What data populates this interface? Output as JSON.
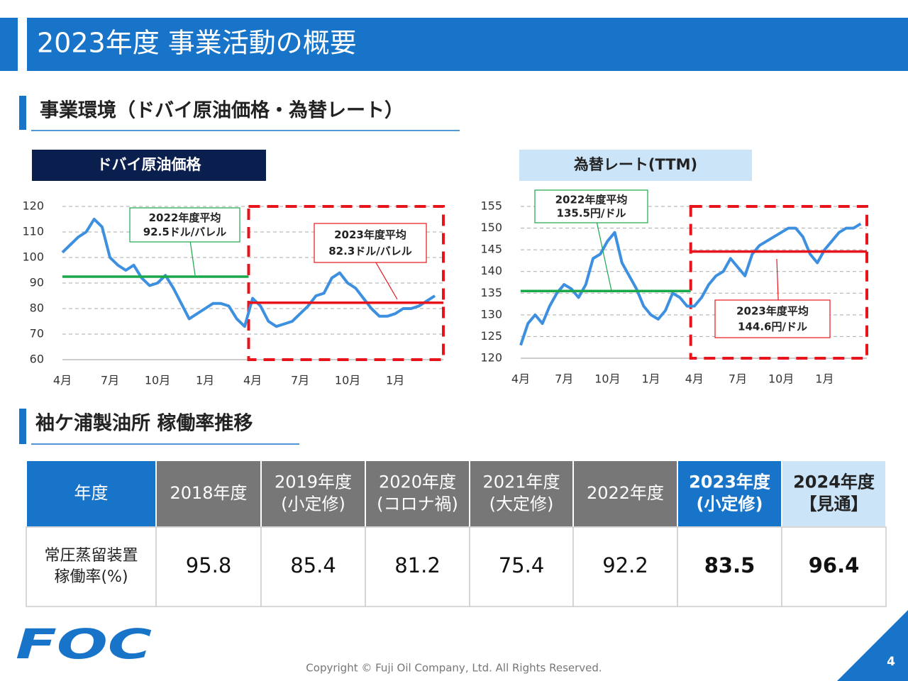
{
  "title": "2023年度 事業活動の概要",
  "section1": "事業環境（ドバイ原油価格・為替レート）",
  "chart_data": [
    {
      "type": "line",
      "title": "ドバイ原油価格",
      "categories": [
        "4月",
        null,
        null,
        null,
        null,
        null,
        "7月",
        null,
        null,
        null,
        null,
        null,
        "10月",
        null,
        null,
        null,
        null,
        null,
        "1月",
        null,
        null,
        null,
        null,
        null,
        "4月",
        null,
        null,
        null,
        null,
        null,
        "7月",
        null,
        null,
        null,
        null,
        null,
        "10月",
        null,
        null,
        null,
        null,
        null,
        "1月",
        null,
        null,
        null,
        null,
        null
      ],
      "values": [
        102,
        105,
        108,
        110,
        115,
        112,
        100,
        97,
        95,
        97,
        92,
        89,
        90,
        93,
        88,
        82,
        76,
        78,
        80,
        82,
        82,
        81,
        76,
        73,
        84,
        81,
        75,
        73,
        74,
        75,
        78,
        81,
        85,
        86,
        92,
        94,
        90,
        88,
        84,
        80,
        77,
        77,
        78,
        80,
        80,
        81,
        83,
        85
      ],
      "color": "#3d8fe0",
      "ylim": [
        60,
        120
      ],
      "yticks": [
        60,
        70,
        80,
        90,
        100,
        110,
        120
      ],
      "grid": true,
      "averages": [
        {
          "title": "2022年度平均",
          "value": 92.5,
          "value_label": "92.5ドル/バレル",
          "color": "#1aa84a"
        },
        {
          "title": "2023年度平均",
          "value": 82.3,
          "value_label": "82.3ドル/バレル",
          "color": "#e8141b"
        }
      ]
    },
    {
      "type": "line",
      "title": "為替レート(TTM)",
      "categories": [
        "4月",
        null,
        null,
        null,
        null,
        null,
        "7月",
        null,
        null,
        null,
        null,
        null,
        "10月",
        null,
        null,
        null,
        null,
        null,
        "1月",
        null,
        null,
        null,
        null,
        null,
        "4月",
        null,
        null,
        null,
        null,
        null,
        "7月",
        null,
        null,
        null,
        null,
        null,
        "10月",
        null,
        null,
        null,
        null,
        null,
        "1月",
        null,
        null,
        null,
        null,
        null
      ],
      "values": [
        123,
        128,
        130,
        128,
        132,
        135,
        137,
        136,
        134,
        137,
        143,
        144,
        147,
        149,
        142,
        139,
        136,
        132,
        130,
        129,
        131,
        135,
        134,
        132,
        132,
        134,
        137,
        139,
        140,
        143,
        141,
        139,
        144,
        146,
        147,
        148,
        149,
        150,
        150,
        148,
        144,
        142,
        145,
        147,
        149,
        150,
        150,
        151
      ],
      "color": "#3d8fe0",
      "ylim": [
        120,
        155
      ],
      "yticks": [
        120,
        125,
        130,
        135,
        140,
        145,
        150,
        155
      ],
      "grid": true,
      "averages": [
        {
          "title": "2022年度平均",
          "value": 135.5,
          "value_label": "135.5円/ドル",
          "color": "#1aa84a"
        },
        {
          "title": "2023年度平均",
          "value": 144.6,
          "value_label": "144.6円/ドル",
          "color": "#e8141b"
        }
      ]
    }
  ],
  "section2": "袖ケ浦製油所 稼働率推移",
  "table": {
    "header": [
      [
        "年度"
      ],
      [
        "2018年度"
      ],
      [
        "2019年度",
        "(小定修)"
      ],
      [
        "2020年度",
        "(コロナ禍)"
      ],
      [
        "2021年度",
        "(大定修)"
      ],
      [
        "2022年度"
      ],
      [
        "2023年度",
        "(小定修)"
      ],
      [
        "2024年度",
        "【見通】"
      ]
    ],
    "row_label": [
      "常圧蒸留装置",
      "稼働率(%)"
    ],
    "values": [
      95.8,
      85.4,
      81.2,
      75.4,
      92.2,
      83.5,
      96.4
    ]
  },
  "footer": {
    "logo": "FOC",
    "copyright": "Copyright © Fuji Oil Company, Ltd. All Rights Reserved.",
    "page": "4"
  }
}
